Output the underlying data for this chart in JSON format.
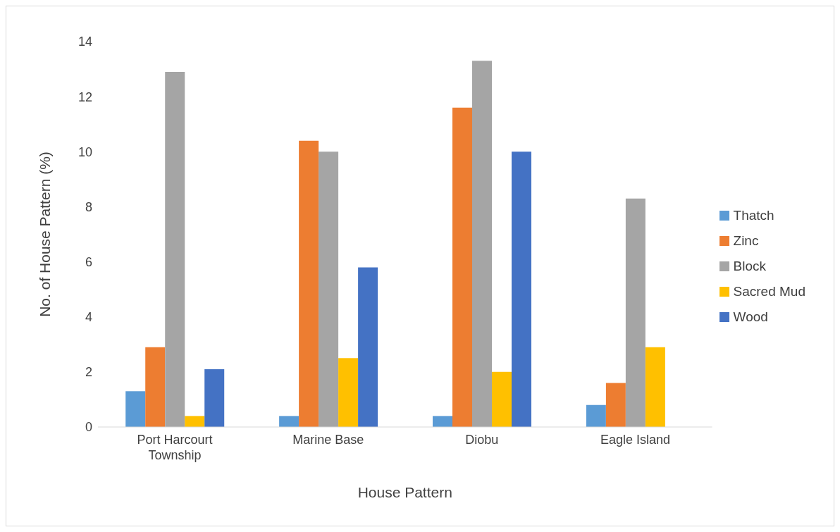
{
  "chart_data": {
    "type": "bar",
    "xlabel": "House Pattern",
    "ylabel": "No. of House Pattern (%)",
    "categories": [
      "Port Harcourt Township",
      "Marine Base",
      "Diobu",
      "Eagle Island"
    ],
    "series": [
      {
        "name": "Thatch",
        "color": "#5b9bd5",
        "values": [
          1.3,
          0.4,
          0.4,
          0.8
        ]
      },
      {
        "name": "Zinc",
        "color": "#ed7d31",
        "values": [
          2.9,
          10.4,
          11.6,
          1.6
        ]
      },
      {
        "name": "Block",
        "color": "#a5a5a5",
        "values": [
          12.9,
          10.0,
          13.3,
          8.3
        ]
      },
      {
        "name": "Sacred Mud",
        "color": "#ffc000",
        "values": [
          0.4,
          2.5,
          2.0,
          2.9
        ]
      },
      {
        "name": "Wood",
        "color": "#4472c4",
        "values": [
          2.1,
          5.8,
          10.0,
          0
        ]
      }
    ],
    "ylim": [
      0,
      14
    ],
    "yticks": [
      0,
      2,
      4,
      6,
      8,
      10,
      12,
      14
    ],
    "grid": false,
    "legend": "right"
  }
}
